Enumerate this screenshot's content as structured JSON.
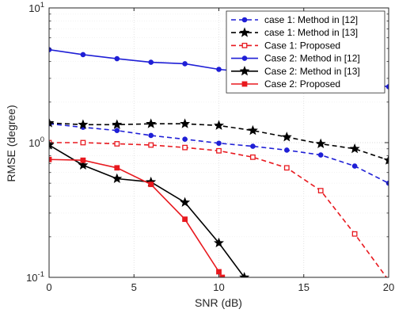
{
  "chart_data": {
    "type": "line",
    "xlabel": "SNR (dB)",
    "ylabel": "RMSE (degree)",
    "xlim": [
      0,
      20
    ],
    "ylim": [
      0.1,
      10
    ],
    "yscale": "log",
    "x_ticks": [
      "0",
      "5",
      "10",
      "15",
      "20"
    ],
    "y_ticks": [
      {
        "base": "10",
        "exp": "-1"
      },
      {
        "base": "10",
        "exp": "0"
      },
      {
        "base": "10",
        "exp": "1"
      }
    ],
    "grid": true,
    "legend_position": "top-right",
    "series": [
      {
        "name": "case 1: Method in [12]",
        "color": "#1f1fd6",
        "dash": "dashed",
        "marker": "dot",
        "x": [
          0,
          2,
          4,
          6,
          8,
          10,
          12,
          14,
          16,
          18,
          20
        ],
        "y": [
          1.38,
          1.3,
          1.23,
          1.13,
          1.06,
          0.99,
          0.94,
          0.88,
          0.81,
          0.67,
          0.5
        ]
      },
      {
        "name": "case 1: Method in [13]",
        "color": "#000000",
        "dash": "dashed",
        "marker": "star",
        "x": [
          0,
          2,
          4,
          6,
          8,
          10,
          12,
          14,
          16,
          18,
          20
        ],
        "y": [
          1.4,
          1.36,
          1.36,
          1.38,
          1.38,
          1.34,
          1.23,
          1.1,
          0.98,
          0.9,
          0.74
        ]
      },
      {
        "name": "Case 1: Proposed",
        "color": "#e8191f",
        "dash": "dashed",
        "marker": "square-open",
        "x": [
          0,
          2,
          4,
          6,
          8,
          10,
          12,
          14,
          16,
          18,
          20
        ],
        "y": [
          1.0,
          1.0,
          0.98,
          0.96,
          0.92,
          0.87,
          0.78,
          0.65,
          0.44,
          0.21,
          0.095
        ]
      },
      {
        "name": "Case 2: Method in [12]",
        "color": "#1f1fd6",
        "dash": "solid",
        "marker": "dot",
        "x": [
          0,
          2,
          4,
          6,
          8,
          10,
          12,
          14,
          16,
          18,
          20
        ],
        "y": [
          4.9,
          4.5,
          4.2,
          3.95,
          3.85,
          3.5,
          3.3,
          3.1,
          2.95,
          2.8,
          2.6
        ]
      },
      {
        "name": "Case 2: Method in [13]",
        "color": "#000000",
        "dash": "solid",
        "marker": "star",
        "x": [
          0,
          2,
          4,
          6,
          8,
          10,
          11.5
        ],
        "y": [
          0.96,
          0.68,
          0.54,
          0.51,
          0.36,
          0.18,
          0.1
        ]
      },
      {
        "name": "Case 2: Proposed",
        "color": "#e8191f",
        "dash": "solid",
        "marker": "square",
        "x": [
          0,
          2,
          4,
          6,
          8,
          10,
          10.2
        ],
        "y": [
          0.75,
          0.74,
          0.65,
          0.49,
          0.27,
          0.11,
          0.1
        ]
      }
    ]
  }
}
